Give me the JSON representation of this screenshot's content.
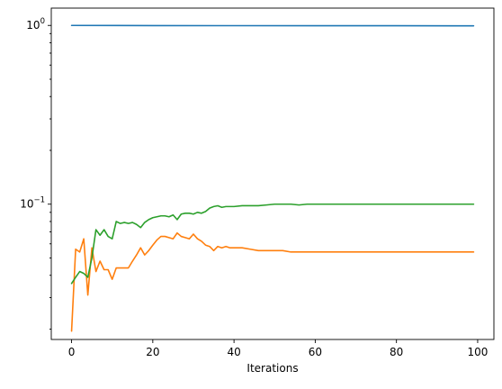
{
  "chart_data": {
    "type": "line",
    "xlabel": "Iterations",
    "ylabel": "",
    "yscale": "log",
    "xlim": [
      -5,
      104
    ],
    "ylim": [
      0.0175,
      1.25
    ],
    "grid": false,
    "x_ticks": [
      0,
      20,
      40,
      60,
      80,
      100
    ],
    "x_tick_labels": [
      "0",
      "20",
      "40",
      "60",
      "80",
      "100"
    ],
    "y_major_ticks": [
      0.1,
      1
    ],
    "y_tick_labels": [
      {
        "base": "10",
        "exp": "−1"
      },
      {
        "base": "10",
        "exp": "0"
      }
    ],
    "y_minor_ticks": [
      0.02,
      0.03,
      0.04,
      0.05,
      0.06,
      0.07,
      0.08,
      0.09,
      0.2,
      0.3,
      0.4,
      0.5,
      0.6,
      0.7,
      0.8,
      0.9
    ],
    "series": [
      {
        "color": "#1f77b4",
        "points": [
          [
            0,
            1.0
          ],
          [
            20,
            0.998
          ],
          [
            40,
            0.997
          ],
          [
            60,
            0.996
          ],
          [
            80,
            0.996
          ],
          [
            99,
            0.995
          ]
        ]
      },
      {
        "color": "#ff7f0e",
        "points": [
          [
            0,
            0.0195
          ],
          [
            1,
            0.056
          ],
          [
            2,
            0.054
          ],
          [
            3,
            0.064
          ],
          [
            4,
            0.031
          ],
          [
            5,
            0.057
          ],
          [
            6,
            0.042
          ],
          [
            7,
            0.048
          ],
          [
            8,
            0.043
          ],
          [
            9,
            0.043
          ],
          [
            10,
            0.038
          ],
          [
            11,
            0.044
          ],
          [
            12,
            0.044
          ],
          [
            13,
            0.044
          ],
          [
            14,
            0.044
          ],
          [
            15,
            0.048
          ],
          [
            16,
            0.052
          ],
          [
            17,
            0.057
          ],
          [
            18,
            0.052
          ],
          [
            19,
            0.055
          ],
          [
            20,
            0.059
          ],
          [
            21,
            0.063
          ],
          [
            22,
            0.066
          ],
          [
            23,
            0.066
          ],
          [
            24,
            0.065
          ],
          [
            25,
            0.064
          ],
          [
            26,
            0.069
          ],
          [
            27,
            0.066
          ],
          [
            28,
            0.065
          ],
          [
            29,
            0.064
          ],
          [
            30,
            0.068
          ],
          [
            31,
            0.064
          ],
          [
            32,
            0.062
          ],
          [
            33,
            0.059
          ],
          [
            34,
            0.058
          ],
          [
            35,
            0.055
          ],
          [
            36,
            0.058
          ],
          [
            37,
            0.057
          ],
          [
            38,
            0.058
          ],
          [
            39,
            0.057
          ],
          [
            40,
            0.057
          ],
          [
            42,
            0.057
          ],
          [
            44,
            0.056
          ],
          [
            46,
            0.055
          ],
          [
            48,
            0.055
          ],
          [
            50,
            0.055
          ],
          [
            52,
            0.055
          ],
          [
            54,
            0.054
          ],
          [
            56,
            0.054
          ],
          [
            58,
            0.054
          ],
          [
            60,
            0.054
          ],
          [
            62,
            0.054
          ],
          [
            65,
            0.054
          ],
          [
            70,
            0.054
          ],
          [
            80,
            0.054
          ],
          [
            90,
            0.054
          ],
          [
            99,
            0.054
          ]
        ]
      },
      {
        "color": "#2ca02c",
        "points": [
          [
            0,
            0.036
          ],
          [
            1,
            0.039
          ],
          [
            2,
            0.042
          ],
          [
            3,
            0.041
          ],
          [
            4,
            0.039
          ],
          [
            5,
            0.05
          ],
          [
            6,
            0.072
          ],
          [
            7,
            0.067
          ],
          [
            8,
            0.072
          ],
          [
            9,
            0.066
          ],
          [
            10,
            0.064
          ],
          [
            11,
            0.08
          ],
          [
            12,
            0.078
          ],
          [
            13,
            0.079
          ],
          [
            14,
            0.078
          ],
          [
            15,
            0.079
          ],
          [
            16,
            0.077
          ],
          [
            17,
            0.074
          ],
          [
            18,
            0.079
          ],
          [
            19,
            0.082
          ],
          [
            20,
            0.084
          ],
          [
            21,
            0.085
          ],
          [
            22,
            0.086
          ],
          [
            23,
            0.086
          ],
          [
            24,
            0.085
          ],
          [
            25,
            0.087
          ],
          [
            26,
            0.082
          ],
          [
            27,
            0.088
          ],
          [
            28,
            0.089
          ],
          [
            29,
            0.089
          ],
          [
            30,
            0.088
          ],
          [
            31,
            0.09
          ],
          [
            32,
            0.089
          ],
          [
            33,
            0.091
          ],
          [
            34,
            0.095
          ],
          [
            35,
            0.097
          ],
          [
            36,
            0.098
          ],
          [
            37,
            0.096
          ],
          [
            38,
            0.097
          ],
          [
            40,
            0.097
          ],
          [
            42,
            0.098
          ],
          [
            44,
            0.098
          ],
          [
            46,
            0.098
          ],
          [
            48,
            0.099
          ],
          [
            50,
            0.1
          ],
          [
            52,
            0.1
          ],
          [
            54,
            0.1
          ],
          [
            56,
            0.099
          ],
          [
            58,
            0.1
          ],
          [
            60,
            0.1
          ],
          [
            62,
            0.1
          ],
          [
            65,
            0.1
          ],
          [
            70,
            0.1
          ],
          [
            80,
            0.1
          ],
          [
            90,
            0.1
          ],
          [
            99,
            0.1
          ]
        ]
      }
    ]
  }
}
